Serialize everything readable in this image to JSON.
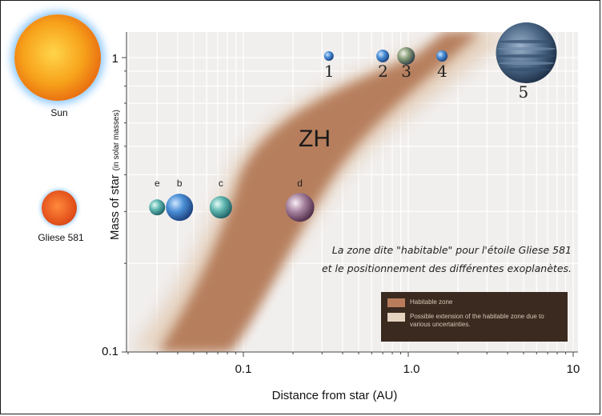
{
  "stars": {
    "sun": "Sun",
    "gliese": "Gliese 581"
  },
  "chart_data": {
    "type": "scatter",
    "xlabel": "Distance from star (AU)",
    "ylabel": "Mass of star",
    "ylabel_unit": "(in solar masses)",
    "x_scale": "log",
    "y_scale": "log",
    "xlim": [
      0.02,
      10
    ],
    "ylim": [
      0.1,
      1.4
    ],
    "x_ticks": [
      "0.1",
      "1.0",
      "10"
    ],
    "y_ticks": [
      "1",
      "0.1"
    ],
    "zone_label": "ZH",
    "annotation_line1": "La zone dite \"habitable\" pour l'étoile Gliese 581",
    "annotation_line2": "et le positionnement des différentes exoplanètes.",
    "legend": [
      {
        "label": "Habitable zone",
        "color": "#b87c5c"
      },
      {
        "label": "Possible extension of the habitable zone due to various uncertainties.",
        "color": "#e5d3c0"
      }
    ],
    "solar_system_planets": [
      {
        "label": "1",
        "x": 0.33,
        "y": 1.0
      },
      {
        "label": "2",
        "x": 0.7,
        "y": 1.0
      },
      {
        "label": "3",
        "x": 0.97,
        "y": 1.0
      },
      {
        "label": "4",
        "x": 1.6,
        "y": 1.0
      },
      {
        "label": "5",
        "x": 5.2,
        "y": 1.0
      }
    ],
    "gliese_planets": [
      {
        "label": "e",
        "x": 0.03,
        "y": 0.31
      },
      {
        "label": "b",
        "x": 0.041,
        "y": 0.31
      },
      {
        "label": "c",
        "x": 0.073,
        "y": 0.31
      },
      {
        "label": "d",
        "x": 0.22,
        "y": 0.31
      }
    ]
  }
}
